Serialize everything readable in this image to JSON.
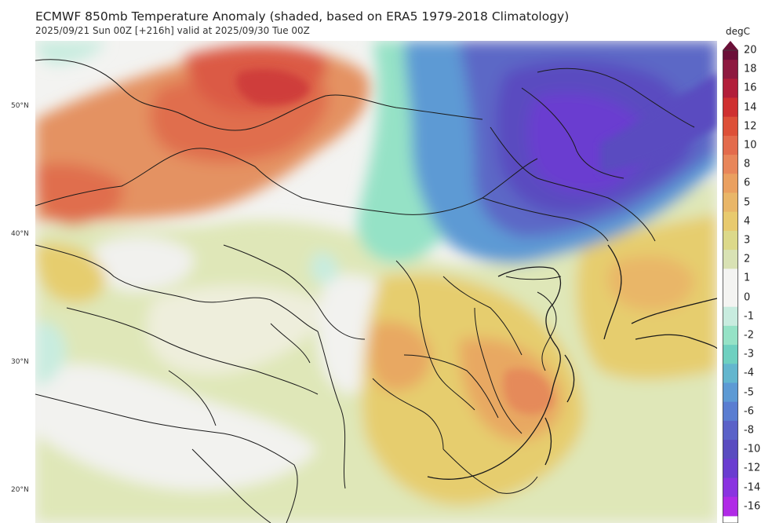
{
  "header": {
    "title": "ECMWF 850mb Temperature Anomaly (shaded, based on ERA5 1979-2018 Climatology)",
    "subtitle": "2025/09/21 Sun 00Z [+216h] valid at 2025/09/30 Tue 00Z"
  },
  "map": {
    "latitude_labels": [
      "50°N",
      "40°N",
      "30°N",
      "20°N"
    ],
    "background_color": "#f3f3f1"
  },
  "colorbar": {
    "unit": "degC",
    "ticks": [
      "20",
      "18",
      "16",
      "14",
      "12",
      "10",
      "8",
      "6",
      "5",
      "4",
      "3",
      "2",
      "1",
      "0",
      "-1",
      "-2",
      "-3",
      "-4",
      "-5",
      "-6",
      "-8",
      "-10",
      "-12",
      "-14",
      "-16"
    ],
    "colors": [
      "#6b1038",
      "#8e1a40",
      "#b21f3a",
      "#cf3030",
      "#dd5038",
      "#e36b4c",
      "#e8865a",
      "#eaa060",
      "#e9b668",
      "#e8ca6e",
      "#dcd98a",
      "#d9e2b4",
      "#f4f4f2",
      "#f4f4f2",
      "#c8ecdf",
      "#95e2c6",
      "#6ed0c0",
      "#63b6ce",
      "#5d9ad4",
      "#5a7dd1",
      "#5b62c8",
      "#5a4cc0",
      "#6a3dd0",
      "#8a33e0",
      "#b02ae6"
    ]
  }
}
